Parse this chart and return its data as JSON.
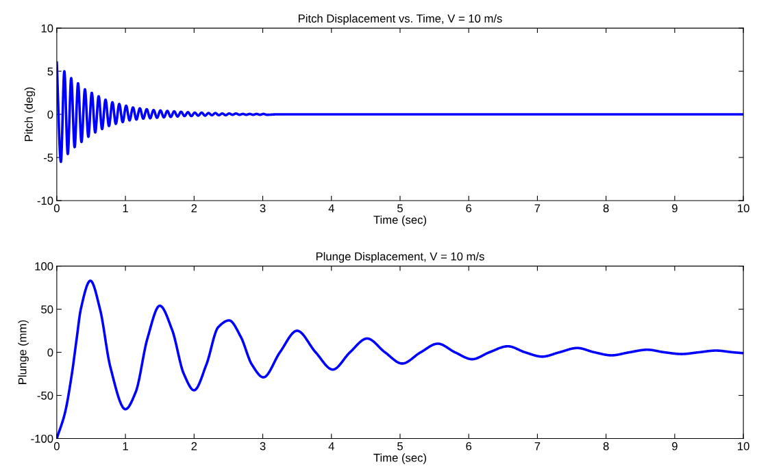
{
  "chart_data": [
    {
      "type": "line",
      "title": "Pitch Displacement vs. Time, V = 10 m/s",
      "xlabel": "Time (sec)",
      "ylabel": "Pitch (deg)",
      "xlim": [
        0,
        10
      ],
      "ylim": [
        -10,
        10
      ],
      "xticks": [
        0,
        1,
        2,
        3,
        4,
        5,
        6,
        7,
        8,
        9,
        10
      ],
      "yticks": [
        -10,
        -5,
        0,
        5,
        10
      ],
      "grid": false,
      "legend": false,
      "series": [
        {
          "color": "#0000ff",
          "x": [
            0,
            0.06,
            0.11,
            0.16,
            0.21,
            0.26,
            0.31,
            0.36,
            0.41,
            0.46,
            0.51,
            0.56,
            0.61,
            0.66,
            0.71,
            0.76,
            0.81,
            0.86,
            0.91,
            0.96,
            1.01,
            1.06,
            1.11,
            1.16,
            1.21,
            1.26,
            1.31,
            1.36,
            1.41,
            1.46,
            1.51,
            1.56,
            1.61,
            1.66,
            1.71,
            1.76,
            1.81,
            1.86,
            1.91,
            1.96,
            2.01,
            2.06,
            2.11,
            2.16,
            2.21,
            2.26,
            2.31,
            2.36,
            2.41,
            2.46,
            2.51,
            2.56,
            2.61,
            2.66,
            2.71,
            2.76,
            2.81,
            2.86,
            2.91,
            2.96,
            3.01,
            3.06,
            3.2,
            10
          ],
          "values": [
            6.0,
            -5.5,
            5.0,
            -4.6,
            4.2,
            -3.8,
            3.6,
            -3.2,
            2.9,
            -2.6,
            2.5,
            -2.1,
            2.1,
            -1.7,
            1.7,
            -1.35,
            1.4,
            -1.1,
            1.2,
            -0.9,
            1.0,
            -0.7,
            0.8,
            -0.6,
            0.7,
            -0.5,
            0.6,
            -0.45,
            0.5,
            -0.4,
            0.45,
            -0.35,
            0.4,
            -0.3,
            0.35,
            -0.25,
            0.3,
            -0.2,
            0.25,
            -0.2,
            0.2,
            -0.15,
            0.2,
            -0.15,
            0.15,
            -0.1,
            0.15,
            -0.1,
            0.1,
            -0.1,
            0.1,
            -0.05,
            0.1,
            -0.05,
            0.05,
            -0.05,
            0.05,
            -0.05,
            0.05,
            -0.05,
            0.05,
            -0.05,
            0,
            0
          ]
        }
      ]
    },
    {
      "type": "line",
      "title": "Plunge Displacement, V = 10 m/s",
      "xlabel": "Time (sec)",
      "ylabel": "Plunge (mm)",
      "xlim": [
        0,
        10
      ],
      "ylim": [
        -100,
        100
      ],
      "xticks": [
        0,
        1,
        2,
        3,
        4,
        5,
        6,
        7,
        8,
        9,
        10
      ],
      "yticks": [
        -100,
        -50,
        0,
        50,
        100
      ],
      "grid": false,
      "legend": false,
      "series": [
        {
          "color": "#0000ff",
          "x": [
            0,
            0.12,
            0.22,
            0.29,
            0.35,
            0.49,
            0.63,
            0.78,
            1.0,
            1.15,
            1.32,
            1.5,
            1.68,
            1.85,
            2.0,
            2.18,
            2.35,
            2.51,
            2.68,
            2.84,
            3.01,
            3.25,
            3.5,
            3.77,
            4.02,
            4.27,
            4.52,
            4.78,
            5.03,
            5.3,
            5.55,
            5.8,
            6.05,
            6.3,
            6.57,
            6.82,
            7.07,
            7.32,
            7.58,
            7.83,
            8.08,
            8.34,
            8.6,
            8.85,
            9.1,
            9.35,
            9.6,
            9.85,
            10
          ],
          "values": [
            -100,
            -70,
            -25,
            16,
            50,
            83,
            50,
            -17,
            -66,
            -46,
            16,
            54,
            26,
            -25,
            -44,
            -14,
            29,
            37,
            18,
            -14,
            -29,
            0,
            25,
            0,
            -20,
            0,
            16,
            0,
            -13,
            0,
            10,
            0,
            -8,
            0,
            7,
            0,
            -5,
            0,
            5,
            0,
            -3.5,
            0,
            3,
            0,
            -2,
            0,
            2,
            0,
            -1
          ]
        }
      ]
    }
  ]
}
